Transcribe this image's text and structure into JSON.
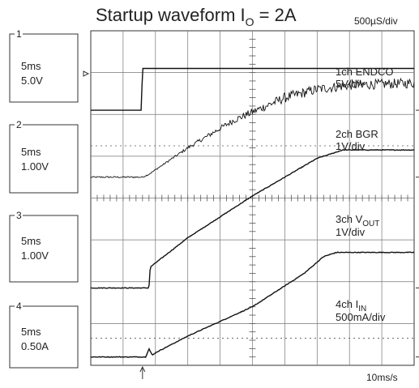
{
  "chart_data": {
    "type": "line",
    "title": {
      "text": "Startup waveform I",
      "subscript": "O",
      "suffix": " = 2A"
    },
    "timebase_top": "500µS/div",
    "timebase_bottom": "10ms/s",
    "grid": true,
    "x_divisions": 10,
    "y_divisions": 8,
    "x_unit": "ms",
    "x_range": [
      0,
      5
    ],
    "trigger_x": 0.8,
    "channel_boxes": [
      {
        "number": "1",
        "time_per_div": "5ms",
        "volts_per_div": "5.0V"
      },
      {
        "number": "2",
        "time_per_div": "5ms",
        "volts_per_div": "1.00V"
      },
      {
        "number": "3",
        "time_per_div": "5ms",
        "volts_per_div": "1.00V"
      },
      {
        "number": "4",
        "time_per_div": "5ms",
        "volts_per_div": "0.50A"
      }
    ],
    "series": [
      {
        "name": "1ch ENDCO",
        "label_prefix": "1ch ENDCO",
        "label_sub": "",
        "label_suffix": "",
        "scale_label": "5V/div",
        "unit": "V",
        "noise": 0,
        "x": [
          0,
          0.78,
          0.8,
          0.82,
          1.0,
          5.0
        ],
        "y": [
          0,
          0,
          5.0,
          5.0,
          5.0,
          5.0
        ],
        "ground_div": 6.1,
        "per_div": 5.0
      },
      {
        "name": "2ch BGR",
        "label_prefix": "2ch BGR",
        "label_sub": "",
        "label_suffix": "",
        "scale_label": "1V/div",
        "unit": "V",
        "noise": 0.12,
        "x": [
          0,
          0.8,
          0.9,
          1.5,
          2.2,
          3.0,
          3.5,
          4.0,
          5.0
        ],
        "y": [
          0,
          0,
          0.07,
          0.7,
          1.35,
          1.9,
          2.1,
          2.2,
          2.25
        ],
        "ground_div": 4.5,
        "per_div": 1.0
      },
      {
        "name": "3ch VOUT",
        "label_prefix": "3ch V",
        "label_sub": "OUT",
        "label_suffix": "",
        "scale_label": "1V/div",
        "unit": "V",
        "noise": 0.02,
        "x": [
          0,
          0.9,
          0.92,
          1.5,
          2.5,
          3.5,
          3.9,
          5.0
        ],
        "y": [
          0,
          0,
          0.5,
          1.2,
          2.2,
          3.1,
          3.3,
          3.3
        ],
        "ground_div": 1.85,
        "per_div": 1.0
      },
      {
        "name": "4ch IIN",
        "label_prefix": "4ch I",
        "label_sub": "IN",
        "label_suffix": "",
        "scale_label": "500mA/div",
        "unit": "A",
        "noise": 0.02,
        "x": [
          0,
          0.85,
          0.9,
          0.95,
          1.0,
          1.5,
          2.5,
          3.3,
          3.6,
          3.8,
          5.0
        ],
        "y": [
          0,
          0,
          0.1,
          0.02,
          0.05,
          0.25,
          0.6,
          1.0,
          1.2,
          1.25,
          1.25
        ],
        "ground_div": 0.2,
        "per_div": 0.5
      }
    ]
  }
}
